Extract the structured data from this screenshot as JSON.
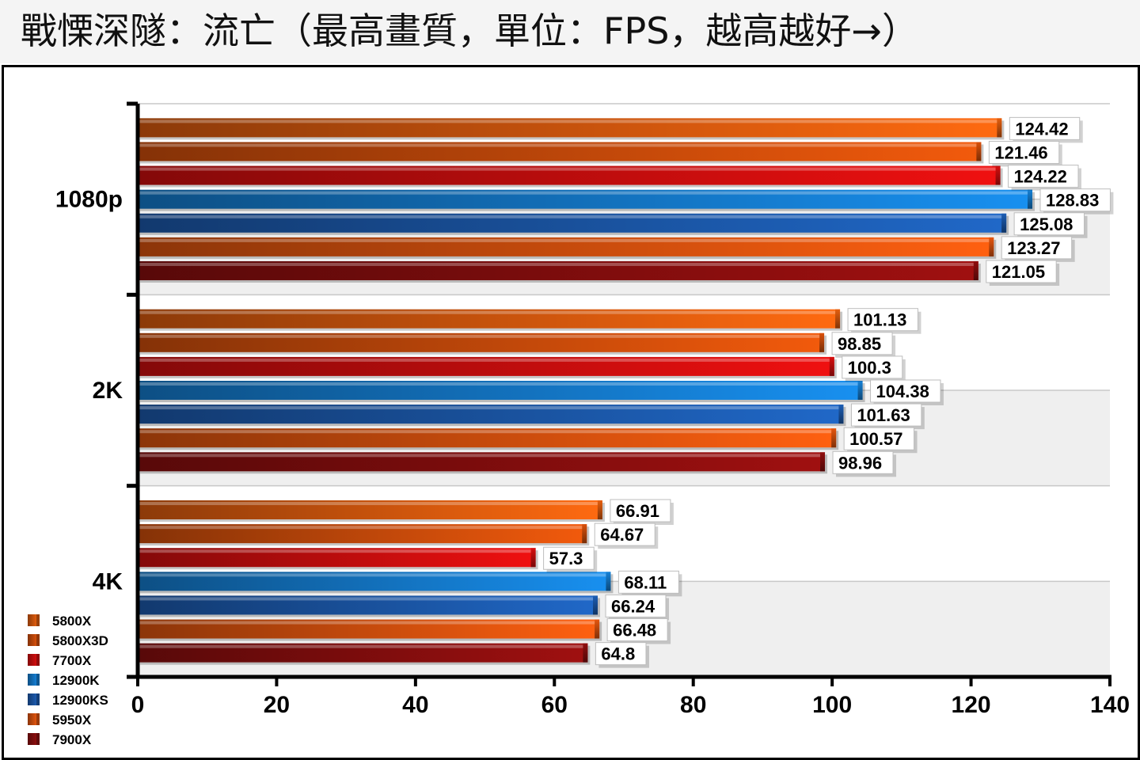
{
  "title": "戰慄深隧：流亡（最高畫質，單位：FPS，越高越好→）",
  "chart_data": {
    "type": "bar",
    "orientation": "horizontal",
    "title": "戰慄深隧：流亡（最高畫質，單位：FPS，越高越好→）",
    "categories": [
      "1080p",
      "2K",
      "4K"
    ],
    "series": [
      {
        "name": "5800X",
        "color": "#ff6a10",
        "values": [
          124.42,
          101.13,
          66.91
        ]
      },
      {
        "name": "5800X3D",
        "color": "#f25a0c",
        "values": [
          121.46,
          98.85,
          64.67
        ]
      },
      {
        "name": "7700X",
        "color": "#f01010",
        "values": [
          124.22,
          100.3,
          57.3
        ]
      },
      {
        "name": "12900K",
        "color": "#1890f0",
        "values": [
          128.83,
          104.38,
          68.11
        ]
      },
      {
        "name": "12900KS",
        "color": "#2068c8",
        "values": [
          125.08,
          101.63,
          66.24
        ]
      },
      {
        "name": "5950X",
        "color": "#ff6010",
        "values": [
          123.27,
          100.57,
          66.48
        ]
      },
      {
        "name": "7900X",
        "color": "#a01010",
        "values": [
          121.05,
          98.96,
          64.8
        ]
      }
    ],
    "value_labels": [
      [
        "124.42",
        "101.13",
        "66.91"
      ],
      [
        "121.46",
        "98.85",
        "64.67"
      ],
      [
        "124.22",
        "100.3",
        "57.3"
      ],
      [
        "128.83",
        "104.38",
        "68.11"
      ],
      [
        "125.08",
        "101.63",
        "66.24"
      ],
      [
        "123.27",
        "100.57",
        "66.48"
      ],
      [
        "121.05",
        "98.96",
        "64.8"
      ]
    ],
    "xlim": [
      0,
      140
    ],
    "xticks": [
      "0",
      "20",
      "40",
      "60",
      "80",
      "100",
      "120",
      "140"
    ],
    "grid": true,
    "legend_position": "bottom-left"
  }
}
